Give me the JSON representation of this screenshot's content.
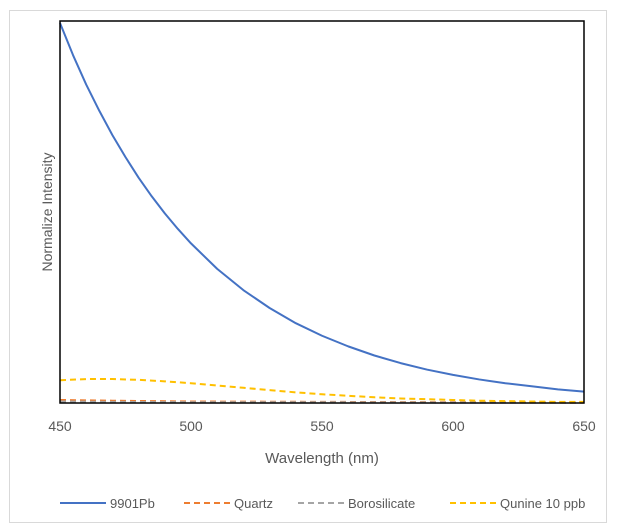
{
  "chart_data": {
    "type": "line",
    "title": "",
    "xlabel": "Wavelength (nm)",
    "ylabel": "Normalize Intensity",
    "xlim": [
      450,
      650
    ],
    "ylim": [
      0,
      1
    ],
    "x_ticks": [
      450,
      500,
      550,
      600,
      650
    ],
    "y_ticks_visible": false,
    "grid": false,
    "legend_position": "bottom",
    "series": [
      {
        "name": "9901Pb",
        "color": "#4472C4",
        "dash": "solid",
        "x": [
          450,
          455,
          460,
          465,
          470,
          475,
          480,
          485,
          490,
          495,
          500,
          510,
          520,
          530,
          540,
          550,
          560,
          570,
          580,
          590,
          600,
          610,
          620,
          630,
          640,
          650
        ],
        "y": [
          1.0,
          0.915,
          0.838,
          0.769,
          0.705,
          0.647,
          0.593,
          0.544,
          0.499,
          0.458,
          0.42,
          0.353,
          0.297,
          0.25,
          0.21,
          0.177,
          0.149,
          0.125,
          0.105,
          0.088,
          0.074,
          0.062,
          0.052,
          0.044,
          0.036,
          0.03
        ]
      },
      {
        "name": "Quartz",
        "color": "#ED7D31",
        "dash": "dashed",
        "x": [
          450,
          470,
          500,
          550,
          600,
          650
        ],
        "y": [
          0.008,
          0.006,
          0.004,
          0.003,
          0.002,
          0.001
        ]
      },
      {
        "name": "Borosilicate",
        "color": "#A5A5A5",
        "dash": "dashed",
        "x": [
          450,
          470,
          500,
          550,
          600,
          650
        ],
        "y": [
          0.004,
          0.003,
          0.002,
          0.002,
          0.001,
          0.001
        ]
      },
      {
        "name": "Qunine 10 ppb",
        "color": "#FFC000",
        "dash": "dashed",
        "x": [
          450,
          460,
          470,
          480,
          490,
          500,
          510,
          520,
          530,
          540,
          550,
          560,
          570,
          580,
          590,
          600,
          610,
          620,
          630,
          640,
          650
        ],
        "y": [
          0.06,
          0.063,
          0.063,
          0.061,
          0.057,
          0.052,
          0.046,
          0.04,
          0.034,
          0.028,
          0.023,
          0.019,
          0.015,
          0.012,
          0.01,
          0.008,
          0.006,
          0.005,
          0.004,
          0.003,
          0.003
        ]
      }
    ]
  }
}
